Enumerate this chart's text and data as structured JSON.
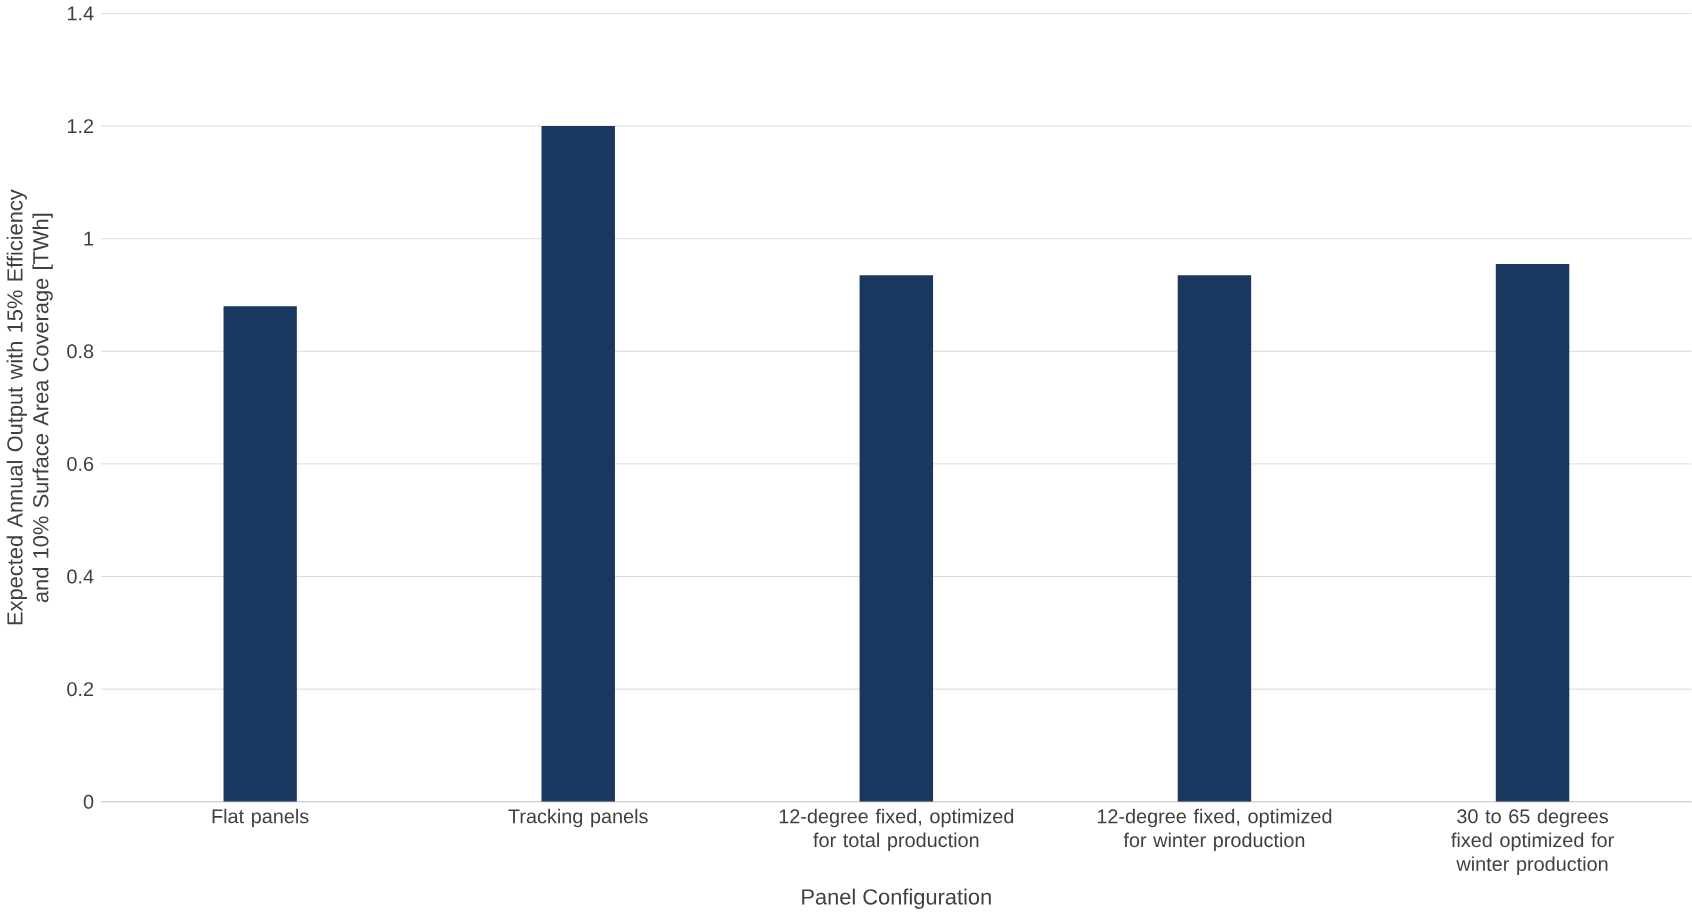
{
  "chart_data": {
    "type": "bar",
    "xlabel": "Panel Configuration",
    "ylabel": "Expected Annual Output with 15% Efficiency and 10% Surface Area Coverage [TWh]",
    "categories": [
      "Flat panels",
      "Tracking panels",
      "12-degree fixed, optimized for total production",
      "12-degree fixed, optimized for winter production",
      "30 to 65 degrees fixed optimized for winter production"
    ],
    "values": [
      0.88,
      1.2,
      0.935,
      0.935,
      0.955
    ],
    "color": "#1a3760",
    "ylim": [
      0,
      1.4
    ],
    "yticks": [
      0,
      0.2,
      0.4,
      0.6,
      0.8,
      1,
      1.2,
      1.4
    ],
    "grid": "y"
  }
}
